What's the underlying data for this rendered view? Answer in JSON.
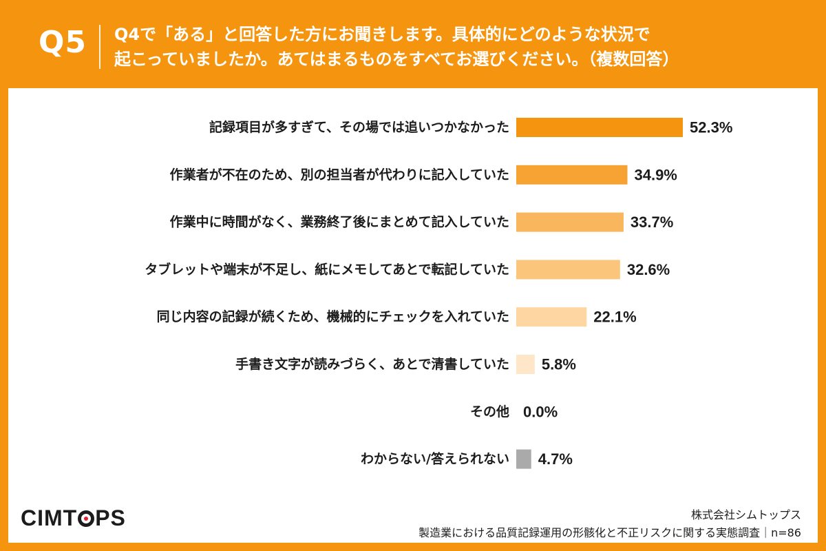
{
  "header": {
    "q_label": "Q5",
    "question_line1": "Q4で「ある」と回答した方にお聞きします。具体的にどのような状況で",
    "question_line2": "起こっていましたか。あてはまるものをすべてお選びください。（複数回答）"
  },
  "chart_data": {
    "type": "bar",
    "orientation": "horizontal",
    "categories": [
      "記録項目が多すぎて、その場では追いつかなかった",
      "作業者が不在のため、別の担当者が代わりに記入していた",
      "作業中に時間がなく、業務終了後にまとめて記入していた",
      "タブレットや端末が不足し、紙にメモしてあとで転記していた",
      "同じ内容の記録が続くため、機械的にチェックを入れていた",
      "手書き文字が読みづらく、あとで清書していた",
      "その他",
      "わからない/答えられない"
    ],
    "values": [
      52.3,
      34.9,
      33.7,
      32.6,
      22.1,
      5.8,
      0.0,
      4.7
    ],
    "value_labels": [
      "52.3%",
      "34.9%",
      "33.7%",
      "32.6%",
      "22.1%",
      "5.8%",
      "0.0%",
      "4.7%"
    ],
    "bar_colors": [
      "#f5940f",
      "#f7a333",
      "#f9b65c",
      "#fbc57b",
      "#fdd6a2",
      "#fde7c8",
      "#fdf0dc",
      "#aaaaaa"
    ],
    "xlim": [
      0,
      100
    ]
  },
  "footer": {
    "company": "株式会社シムトップス",
    "survey": "製造業における品質記録運用の形骸化と不正リスクに関する実態調査｜n=86"
  },
  "logo": {
    "part1": "CIMT",
    "part2": "PS"
  }
}
